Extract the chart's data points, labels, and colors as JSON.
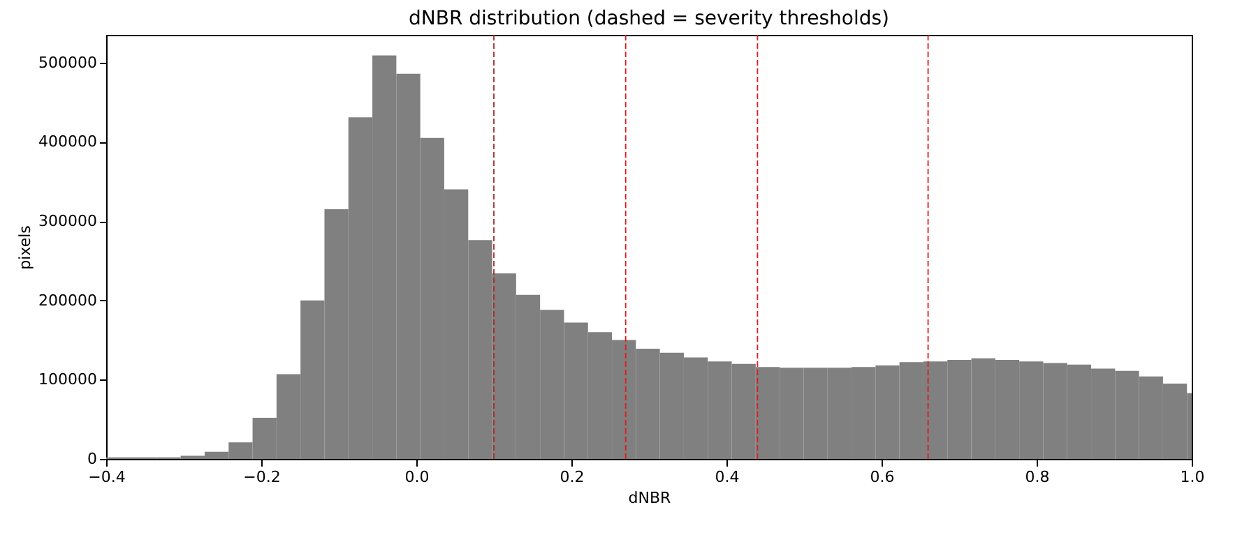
{
  "chart_data": {
    "type": "histogram",
    "title": "dNBR distribution (dashed = severity thresholds)",
    "xlabel": "dNBR",
    "ylabel": "pixels",
    "bins": [
      -0.4275,
      -0.3966,
      -0.3657,
      -0.3348,
      -0.3039,
      -0.273,
      -0.2421,
      -0.2112,
      -0.1803,
      -0.1494,
      -0.1185,
      -0.0876,
      -0.0567,
      -0.0258,
      0.0051,
      0.036,
      0.0669,
      0.0978,
      0.1287,
      0.1596,
      0.1905,
      0.2214,
      0.2523,
      0.2832,
      0.3141,
      0.345,
      0.3759,
      0.4068,
      0.4377,
      0.4686,
      0.4995,
      0.5304,
      0.5613,
      0.5922,
      0.6231,
      0.654,
      0.6849,
      0.7158,
      0.7467,
      0.7776,
      0.8085,
      0.8394,
      0.8703,
      0.9012,
      0.9321,
      0.963,
      0.9939,
      1.0248
    ],
    "values": [
      2000,
      2000,
      2000,
      2000,
      4000,
      9000,
      21000,
      52000,
      107000,
      200000,
      315000,
      431000,
      509000,
      486000,
      405000,
      340000,
      276000,
      234000,
      207000,
      188000,
      172000,
      160000,
      150000,
      139000,
      134000,
      128000,
      123000,
      120000,
      116000,
      115000,
      115000,
      115000,
      116000,
      118000,
      122000,
      123000,
      125000,
      127000,
      125000,
      123000,
      121000,
      119000,
      114000,
      111000,
      104000,
      95000,
      83000
    ],
    "color": "#808080",
    "xlim": [
      -0.4,
      1.0
    ],
    "xticks": [
      -0.4,
      -0.2,
      {
        "value": 0,
        "label": "0.0"
      },
      0.2,
      0.4,
      0.6,
      0.8,
      {
        "value": 1,
        "label": "1.0"
      }
    ],
    "ylim": [
      0,
      535000
    ],
    "yticks": [
      0,
      100000,
      200000,
      300000,
      400000,
      500000
    ],
    "grid": false,
    "ref_lines": [
      {
        "axis": "x",
        "value": 0.1,
        "color": "#a52a2a",
        "line_style": "dashed"
      },
      {
        "axis": "x",
        "value": 0.27,
        "color": "#e31a1c",
        "line_style": "dashed"
      },
      {
        "axis": "x",
        "value": 0.44,
        "color": "#e31a1c",
        "line_style": "dashed"
      },
      {
        "axis": "x",
        "value": 0.66,
        "color": "#e31a1c",
        "line_style": "dashed"
      }
    ]
  }
}
